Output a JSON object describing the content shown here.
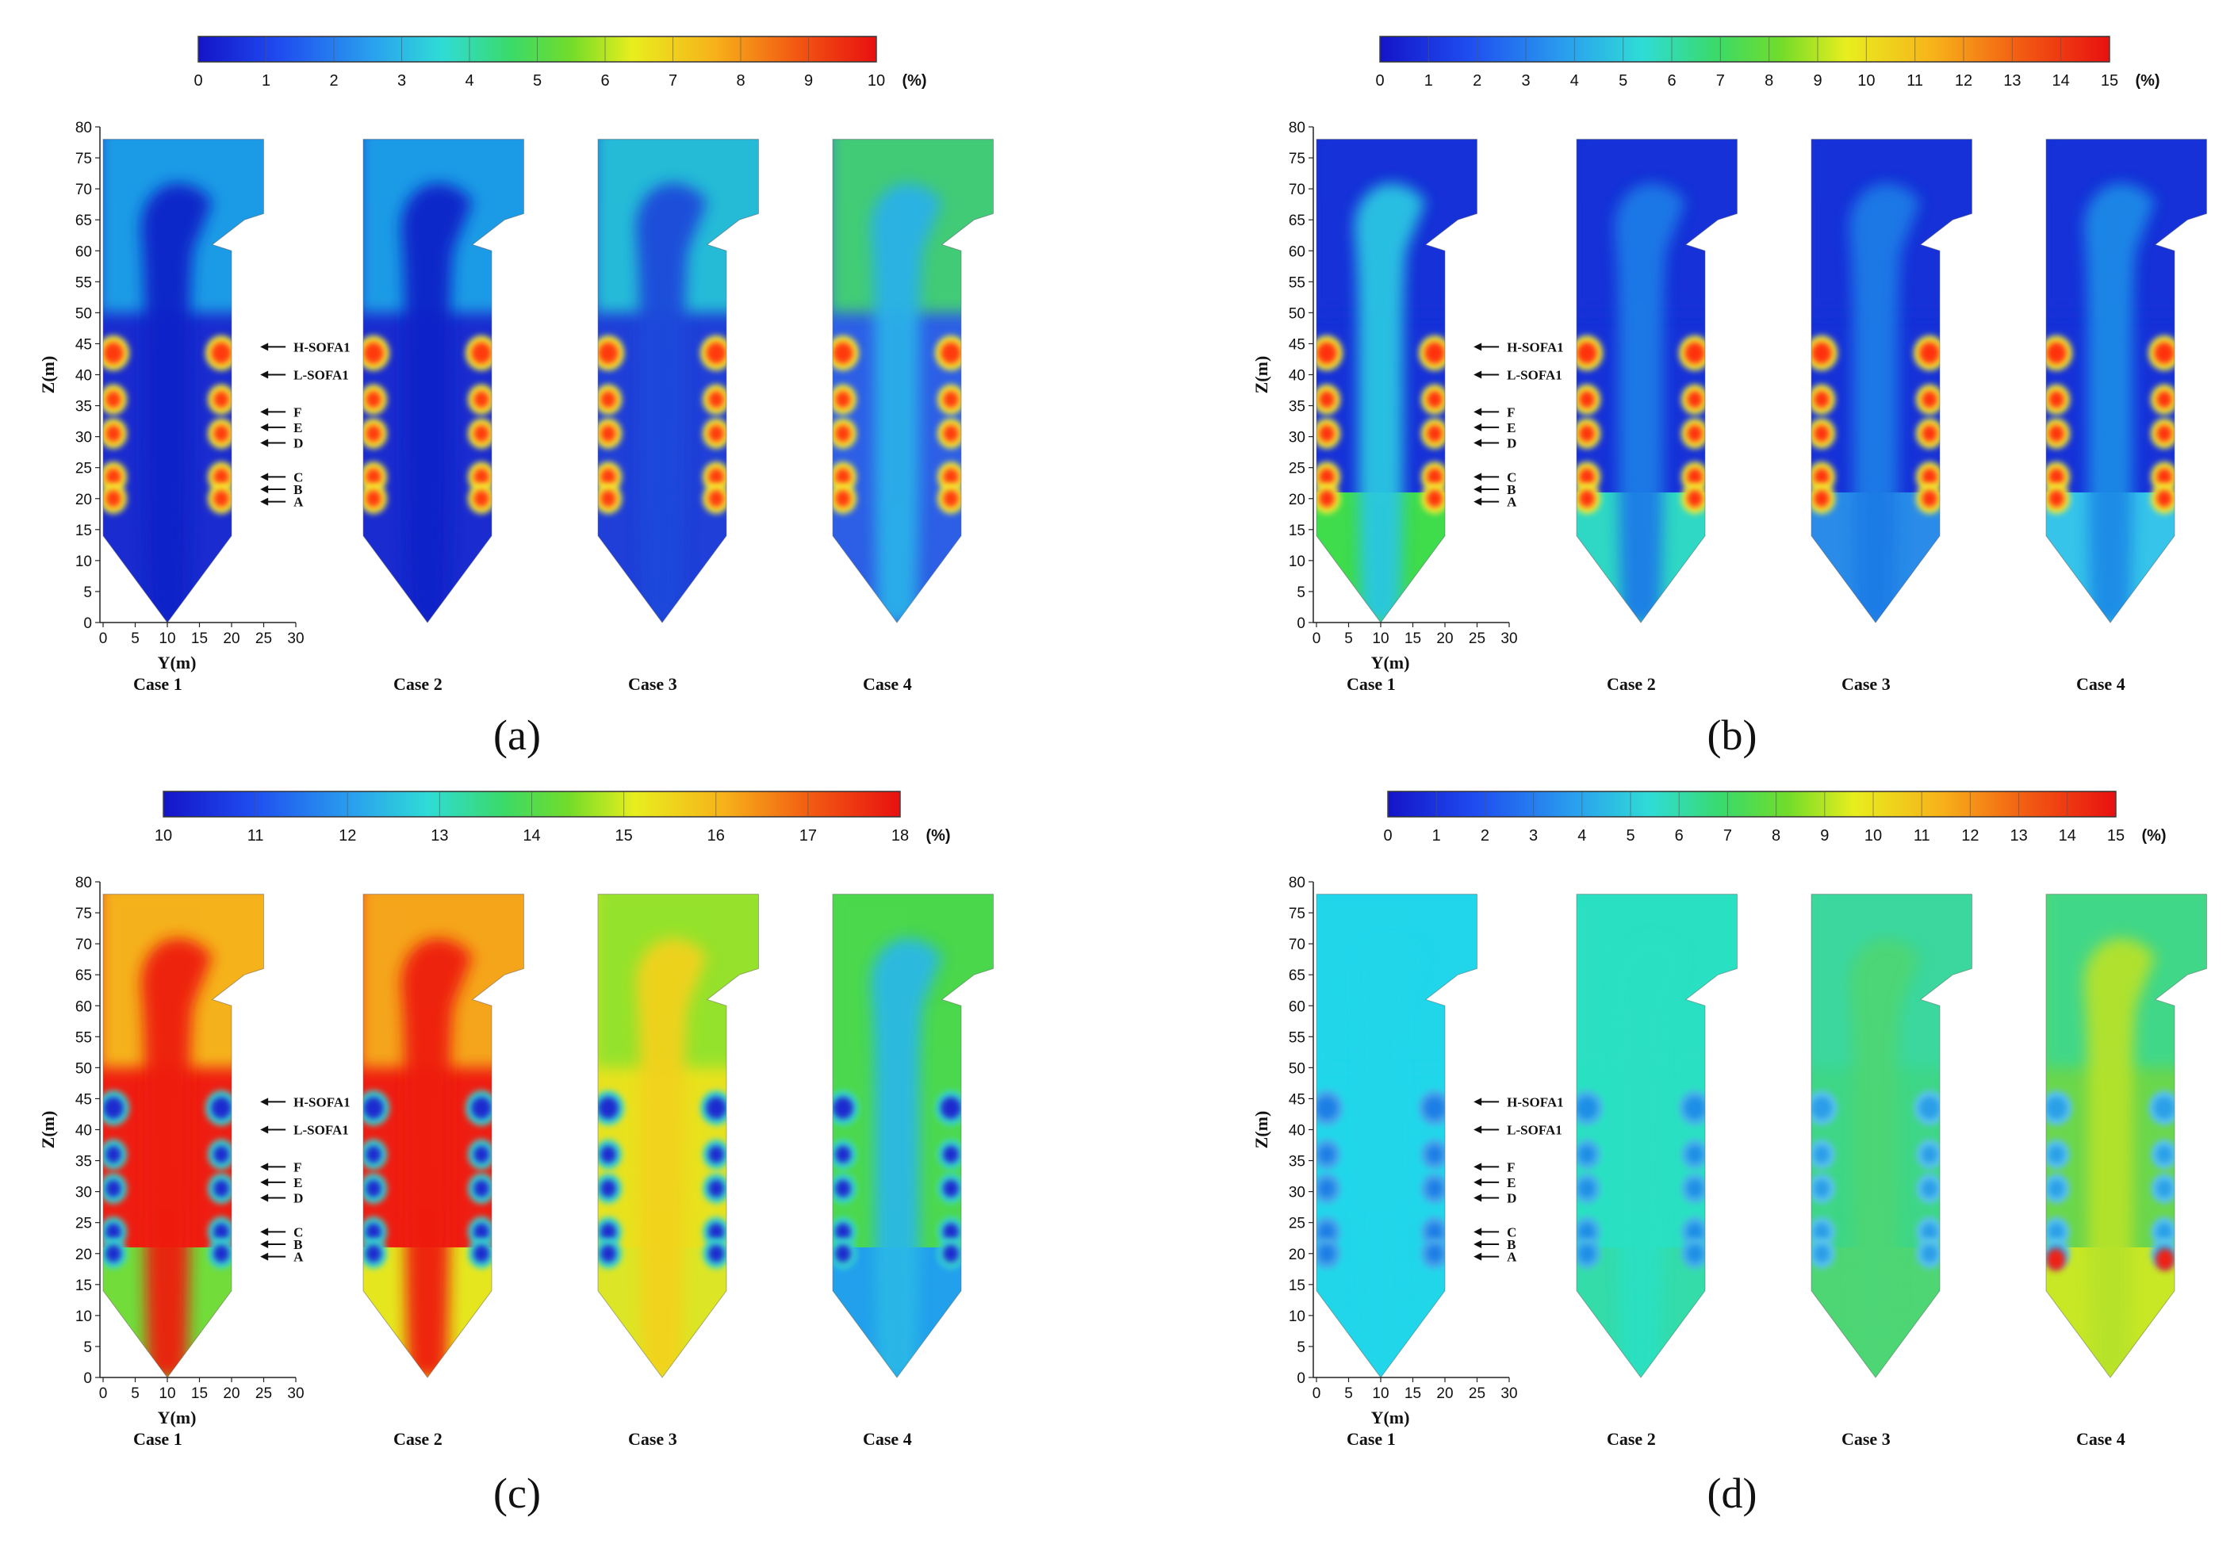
{
  "panels": [
    {
      "letter": "(a)",
      "colorbar": {
        "ticks": [
          "0",
          "1",
          "2",
          "3",
          "4",
          "5",
          "6",
          "7",
          "8",
          "9",
          "10"
        ],
        "unit": "(%)",
        "palette": "jet"
      },
      "cases": [
        "Case 1",
        "Case 2",
        "Case 3",
        "Case 4"
      ],
      "field_style": [
        {
          "bg": "#1a2ccf",
          "upper": "#1fa8e8",
          "hot": "#ff3a10",
          "ring": "#f7ef32",
          "plume": "#0d22c8"
        },
        {
          "bg": "#1a2ccf",
          "upper": "#1fa8e8",
          "hot": "#ff3a10",
          "ring": "#f7ef32",
          "plume": "#0d22c8"
        },
        {
          "bg": "#1f3fd8",
          "upper": "#28c9d8",
          "hot": "#ff3a10",
          "ring": "#f7ef32",
          "plume": "#1a48da"
        },
        {
          "bg": "#2d5fe6",
          "upper": "#44d86a",
          "hot": "#ff3a10",
          "ring": "#f7ef32",
          "plume": "#2ab0e8"
        }
      ]
    },
    {
      "letter": "(b)",
      "colorbar": {
        "ticks": [
          "0",
          "1",
          "2",
          "3",
          "4",
          "5",
          "6",
          "7",
          "8",
          "9",
          "10",
          "11",
          "12",
          "13",
          "14",
          "15"
        ],
        "unit": "(%)",
        "palette": "jet"
      },
      "cases": [
        "Case 1",
        "Case 2",
        "Case 3",
        "Case 4"
      ],
      "field_style": [
        {
          "bg": "#1631d8",
          "upper": "#1631d8",
          "hot": "#ff3010",
          "ring": "#f4f030",
          "plume": "#2ac6e2",
          "low": "#3fdc4c"
        },
        {
          "bg": "#1631d8",
          "upper": "#1631d8",
          "hot": "#ff3010",
          "ring": "#f4f030",
          "plume": "#1f7be6",
          "low": "#2fd8c4"
        },
        {
          "bg": "#1631d8",
          "upper": "#1631d8",
          "hot": "#ff3010",
          "ring": "#f4f030",
          "plume": "#1f7be6",
          "low": "#2a8ce8"
        },
        {
          "bg": "#1631d8",
          "upper": "#1631d8",
          "hot": "#ff3010",
          "ring": "#f4f030",
          "plume": "#1f8ae6",
          "low": "#36c4ea"
        }
      ]
    },
    {
      "letter": "(c)",
      "colorbar": {
        "ticks": [
          "10",
          "11",
          "12",
          "13",
          "14",
          "15",
          "16",
          "17",
          "18"
        ],
        "unit": "(%)",
        "palette": "jet"
      },
      "cases": [
        "Case 1",
        "Case 2",
        "Case 3",
        "Case 4"
      ],
      "field_style": [
        {
          "bg": "#ef1e12",
          "upper": "#f6c21c",
          "hot": "#1a2ccf",
          "ring": "#38d8d0",
          "plume": "#ee1a10",
          "low": "#72dc3a"
        },
        {
          "bg": "#ef1e12",
          "upper": "#f6b41c",
          "hot": "#1a2ccf",
          "ring": "#38d8d0",
          "plume": "#ee1a10",
          "low": "#e6e61e"
        },
        {
          "bg": "#e8e21e",
          "upper": "#8de22e",
          "hot": "#1a2ccf",
          "ring": "#38d8d0",
          "plume": "#f2d21c",
          "low": "#dce626"
        },
        {
          "bg": "#4cd84e",
          "upper": "#4cd84e",
          "hot": "#1a2ccf",
          "ring": "#38d8d0",
          "plume": "#2ab8e6",
          "low": "#22a0ec"
        }
      ]
    },
    {
      "letter": "(d)",
      "colorbar": {
        "ticks": [
          "0",
          "1",
          "2",
          "3",
          "4",
          "5",
          "6",
          "7",
          "8",
          "9",
          "10",
          "11",
          "12",
          "13",
          "14",
          "15"
        ],
        "unit": "(%)",
        "palette": "jet"
      },
      "cases": [
        "Case 1",
        "Case 2",
        "Case 3",
        "Case 4"
      ],
      "field_style": [
        {
          "bg": "#22d6ea",
          "upper": "#22d6ea",
          "hot": "#1a7fe6",
          "ring": "#4aa6ea",
          "plume": "#22d6ea",
          "low": "#22d6ea"
        },
        {
          "bg": "#2ae0c2",
          "upper": "#2ae0c2",
          "hot": "#1a8fe6",
          "ring": "#4ab4ea",
          "plume": "#2ae0c2",
          "low": "#34dcaa"
        },
        {
          "bg": "#3ed686",
          "upper": "#3ad8a2",
          "hot": "#2a9ee8",
          "ring": "#5ac4ea",
          "plume": "#4ed674",
          "low": "#4ed674"
        },
        {
          "bg": "#6ad64c",
          "upper": "#3ed890",
          "hot": "#2aa0e8",
          "ring": "#5ac4ea",
          "plume": "#b6e22c",
          "low": "#c8e826",
          "hotlow": "#ee2212"
        }
      ]
    }
  ],
  "axes": {
    "z_label": "Z(m)",
    "y_label": "Y(m)",
    "z_ticks": [
      "0",
      "5",
      "10",
      "15",
      "20",
      "25",
      "30",
      "35",
      "40",
      "45",
      "50",
      "55",
      "60",
      "65",
      "70",
      "75",
      "80"
    ],
    "y_ticks": [
      "0",
      "5",
      "10",
      "15",
      "20",
      "25",
      "30"
    ]
  },
  "injection_labels": [
    "H-SOFA1",
    "L-SOFA1",
    "F",
    "E",
    "D",
    "C",
    "B",
    "A"
  ],
  "injection_heights": [
    44.5,
    40,
    34,
    31.5,
    29,
    23.5,
    21.5,
    19.5
  ]
}
